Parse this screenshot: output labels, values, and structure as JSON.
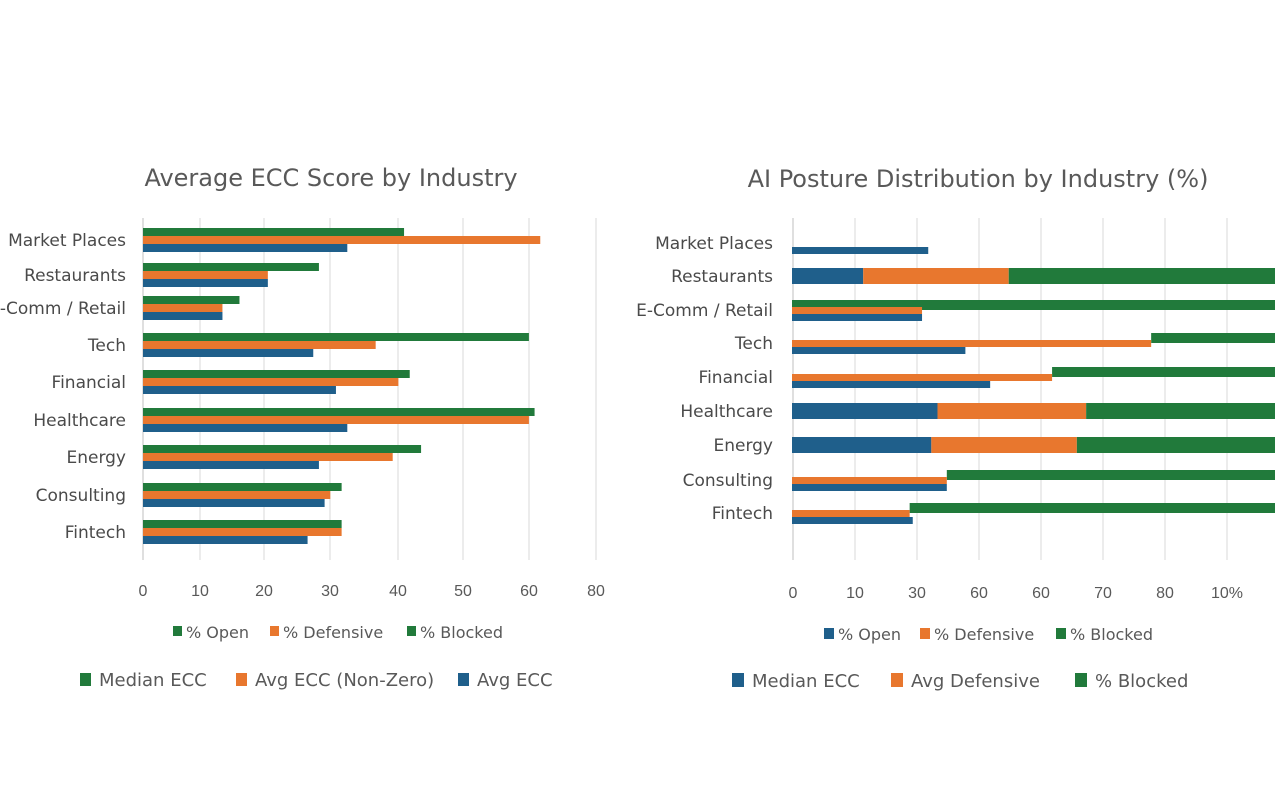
{
  "colors": {
    "open": "#1f5f8b",
    "defensive": "#e8772e",
    "blocked": "#217a3b"
  },
  "chart_data": [
    {
      "type": "bar",
      "orientation": "horizontal",
      "title": "Average ECC Score by Industry",
      "categories": [
        "Market Places",
        "Restaurants",
        "E-Comm / Retail",
        "Tech",
        "Financial",
        "Healthcare",
        "Energy",
        "Consulting",
        "Fintech"
      ],
      "category_display": [
        "Market Places",
        "Restaurants",
        "-Comm / Retail",
        "Tech",
        "Financial",
        "Healthcare",
        "Energy",
        "Consulting",
        "Fintech"
      ],
      "xticks": [
        "0",
        "10",
        "20",
        "30",
        "40",
        "50",
        "60",
        "80"
      ],
      "series": [
        {
          "name": "Median ECC",
          "color": "#217a3b",
          "values": [
            46,
            31,
            17,
            68,
            47,
            69,
            49,
            35,
            35
          ]
        },
        {
          "name": "Avg ECC (Non-Zero)",
          "color": "#e8772e",
          "values": [
            70,
            22,
            14,
            41,
            45,
            68,
            44,
            33,
            35
          ]
        },
        {
          "name": "Avg ECC",
          "color": "#1f5f8b",
          "values": [
            36,
            22,
            14,
            30,
            34,
            36,
            31,
            32,
            29
          ]
        }
      ],
      "legend_top": [
        "% Open",
        "% Defensive",
        "% Blocked"
      ],
      "legend_bottom": [
        "Median ECC",
        "Avg ECC (Non-Zero)",
        "Avg ECC"
      ],
      "grid": true
    },
    {
      "type": "bar",
      "orientation": "horizontal",
      "title": "AI Posture Distribution by Industry (%)",
      "categories": [
        "Market Places",
        "Restaurants",
        "E-Comm / Retail",
        "Tech",
        "Financial",
        "Healthcare",
        "Energy",
        "Consulting",
        "Fintech"
      ],
      "xticks": [
        "0",
        "10",
        "30",
        "60",
        "60",
        "70",
        "80",
        "10%"
      ],
      "rows": [
        {
          "open": 22,
          "defensive": 0,
          "blocked": 0,
          "median": 22,
          "avg_def": 0
        },
        {
          "open": 11.5,
          "defensive": 23.5,
          "blocked": 43,
          "median": 0,
          "avg_def": 0
        },
        {
          "open": 0,
          "defensive": 0,
          "blocked": 78,
          "median": 21,
          "avg_def": 21
        },
        {
          "open": 0,
          "defensive": 0,
          "blocked": 20,
          "median": 28,
          "avg_def": 58
        },
        {
          "open": 0,
          "defensive": 0,
          "blocked": 36,
          "median": 32,
          "avg_def": 42
        },
        {
          "open": 23.5,
          "defensive": 24,
          "blocked": 30.5,
          "median": 0,
          "avg_def": 0
        },
        {
          "open": 22.5,
          "defensive": 23.5,
          "blocked": 32,
          "median": 0,
          "avg_def": 0
        },
        {
          "open": 0,
          "defensive": 0,
          "blocked": 53,
          "median": 25,
          "avg_def": 25
        },
        {
          "open": 0,
          "defensive": 0,
          "blocked": 59,
          "median": 19.5,
          "avg_def": 19
        }
      ],
      "legend_top": [
        "% Open",
        "% Defensive",
        "% Blocked"
      ],
      "legend_bottom": [
        "Median ECC",
        "Avg Defensive",
        "% Blocked"
      ],
      "grid": true
    }
  ]
}
